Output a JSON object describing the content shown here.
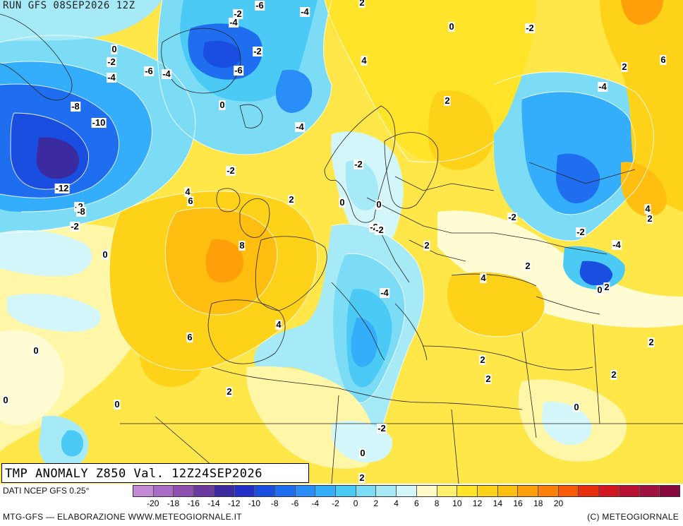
{
  "header": {
    "run": "RUN GFS 08SEP2026 12Z"
  },
  "map_title": "TMP ANOMALY Z850 Val. 12Z24SEP2026",
  "footer": {
    "source": "DATI NCEP GFS 0.25°",
    "credit": "MTG-GFS — ELABORAZIONE WWW.METEOGIORNALE.IT",
    "copyright": "(C) METEOGIORNALE"
  },
  "legend": {
    "colors": [
      "#c48ad6",
      "#a86cc4",
      "#8e4fb0",
      "#6a3a9e",
      "#3b2aa0",
      "#2330c8",
      "#1a4ee0",
      "#1f6ef0",
      "#2a8ef8",
      "#34aefa",
      "#4ccaf6",
      "#7cdcf6",
      "#a6eaf8",
      "#d2f6fa",
      "#fffac8",
      "#fff070",
      "#ffe42a",
      "#ffd21a",
      "#ffbe10",
      "#ffa00a",
      "#ff8006",
      "#f85a0a",
      "#e8300e",
      "#d2181e",
      "#b81030",
      "#a01040",
      "#88083e"
    ],
    "ticks": [
      "-20",
      "-18",
      "-16",
      "-14",
      "-12",
      "-10",
      "-8",
      "-6",
      "-4",
      "-2",
      "0",
      "2",
      "4",
      "6",
      "8",
      "10",
      "12",
      "14",
      "16",
      "18",
      "20"
    ]
  },
  "contour_labels": [
    {
      "text": "-2"
    },
    {
      "text": "-6"
    },
    {
      "text": "-4"
    },
    {
      "text": "-4"
    },
    {
      "text": "2"
    },
    {
      "text": "0"
    },
    {
      "text": "-2"
    },
    {
      "text": "0"
    },
    {
      "text": "-2"
    },
    {
      "text": "-4"
    },
    {
      "text": "-6"
    },
    {
      "text": "-4"
    },
    {
      "text": "-2"
    },
    {
      "text": "-6"
    },
    {
      "text": "4"
    },
    {
      "text": "2"
    },
    {
      "text": "6"
    },
    {
      "text": "-8"
    },
    {
      "text": "0"
    },
    {
      "text": "-4"
    },
    {
      "text": "-10"
    },
    {
      "text": "-4"
    },
    {
      "text": "2"
    },
    {
      "text": "-2"
    },
    {
      "text": "-2"
    },
    {
      "text": "-12"
    },
    {
      "text": "4"
    },
    {
      "text": "6"
    },
    {
      "text": "2"
    },
    {
      "text": "-2"
    },
    {
      "text": "0"
    },
    {
      "text": "0"
    },
    {
      "text": "-8"
    },
    {
      "text": "-2"
    },
    {
      "text": "-2"
    },
    {
      "text": "-2"
    },
    {
      "text": "-2"
    },
    {
      "text": "4"
    },
    {
      "text": "2"
    },
    {
      "text": "8"
    },
    {
      "text": "-2"
    },
    {
      "text": "2"
    },
    {
      "text": "-4"
    },
    {
      "text": "0"
    },
    {
      "text": "2"
    },
    {
      "text": "4"
    },
    {
      "text": "0"
    },
    {
      "text": "2"
    },
    {
      "text": "-4"
    },
    {
      "text": "4"
    },
    {
      "text": "6"
    },
    {
      "text": "2"
    },
    {
      "text": "2"
    },
    {
      "text": "0"
    },
    {
      "text": "2"
    },
    {
      "text": "2"
    },
    {
      "text": "0"
    },
    {
      "text": "0"
    },
    {
      "text": "2"
    },
    {
      "text": "-2"
    },
    {
      "text": "0"
    },
    {
      "text": "0"
    },
    {
      "text": "2"
    }
  ]
}
